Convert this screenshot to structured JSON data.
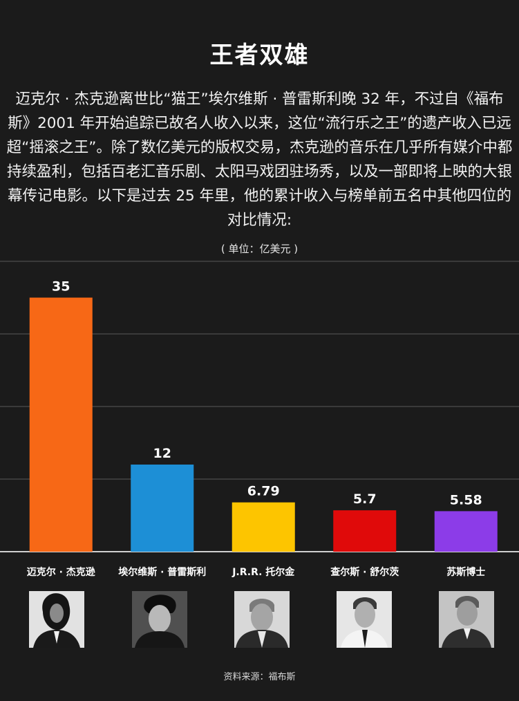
{
  "header": {
    "title": "王者双雄",
    "intro": "迈克尔 · 杰克逊离世比“猫王”埃尔维斯 · 普雷斯利晚 32 年，不过自《福布斯》2001 年开始追踪已故名人收入以来，这位“流行乐之王”的遗产收入已远超“摇滚之王”。除了数亿美元的版权交易，杰克逊的音乐在几乎所有媒介中都持续盈利，包括百老汇音乐剧、太阳马戏团驻场秀，以及一部即将上映的大银幕传记电影。以下是过去 25 年里，他的累计收入与榜单前五名中其他四位的对比情况:",
    "unit": "( 单位：亿美元 )"
  },
  "chart_data": {
    "type": "bar",
    "title": "王者双雄",
    "ylabel": "( 单位：亿美元 )",
    "categories": [
      "迈克尔 · 杰克逊",
      "埃尔维斯 · 普雷斯利",
      "J.R.R. 托尔金",
      "查尔斯 · 舒尔茨",
      "苏斯博士"
    ],
    "values": [
      35,
      12,
      6.79,
      5.7,
      5.58
    ],
    "value_labels": [
      "35",
      "12",
      "6.79",
      "5.7",
      "5.58"
    ],
    "colors": [
      "#f76816",
      "#1d8fd6",
      "#fdc500",
      "#e00a0a",
      "#8c3ce8"
    ],
    "ylim": [
      0,
      40
    ],
    "grid": true,
    "gridlines": [
      10,
      20,
      30,
      40
    ]
  },
  "portraits": [
    {
      "name": "迈克尔 · 杰克逊"
    },
    {
      "name": "埃尔维斯 · 普雷斯利"
    },
    {
      "name": "J.R.R. 托尔金"
    },
    {
      "name": "查尔斯 · 舒尔茨"
    },
    {
      "name": "苏斯博士"
    }
  ],
  "footer": {
    "source": "资料来源：福布斯"
  }
}
